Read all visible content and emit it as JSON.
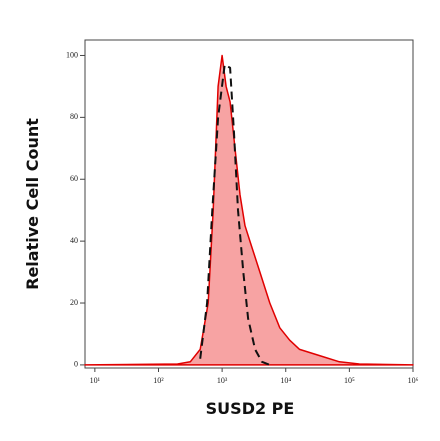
{
  "chart_data": {
    "type": "histogram-overlay",
    "xlabel": "SUSD2 PE",
    "ylabel": "Relative Cell Count",
    "xscale": "log",
    "xlim": [
      7,
      1000000
    ],
    "ylim": [
      -1,
      105
    ],
    "xticks": [
      {
        "value": 10,
        "label": "10¹"
      },
      {
        "value": 100,
        "label": "10²"
      },
      {
        "value": 1000,
        "label": "10³"
      },
      {
        "value": 10000,
        "label": "10⁴"
      },
      {
        "value": 100000,
        "label": "10⁵"
      },
      {
        "value": 1000000,
        "label": "10⁶"
      }
    ],
    "yticks": [
      0,
      20,
      40,
      60,
      80,
      100
    ],
    "series": [
      {
        "color": "#e00000",
        "fill": "#f7a3a3",
        "style": "solid",
        "x": [
          7,
          200,
          316,
          453,
          604,
          723,
          866,
          1000,
          1155,
          1334,
          1596,
          1911,
          2287,
          2738,
          3926,
          5623,
          8058,
          11548,
          16540,
          34000,
          69800,
          143300,
          1000000
        ],
        "values": [
          0,
          0.3,
          1,
          5,
          20,
          50,
          90,
          100,
          90,
          85,
          70,
          55,
          45,
          40,
          30,
          20,
          12,
          8,
          5,
          3,
          1,
          0.3,
          0
        ]
      },
      {
        "color": "#111111",
        "style": "dashed",
        "x": [
          453,
          580,
          700,
          866,
          1100,
          1334,
          1540,
          1780,
          2150,
          2560,
          3300,
          4220,
          5623
        ],
        "values": [
          2,
          20,
          50,
          80,
          97,
          96,
          75,
          50,
          30,
          15,
          5,
          1,
          0
        ]
      }
    ]
  }
}
